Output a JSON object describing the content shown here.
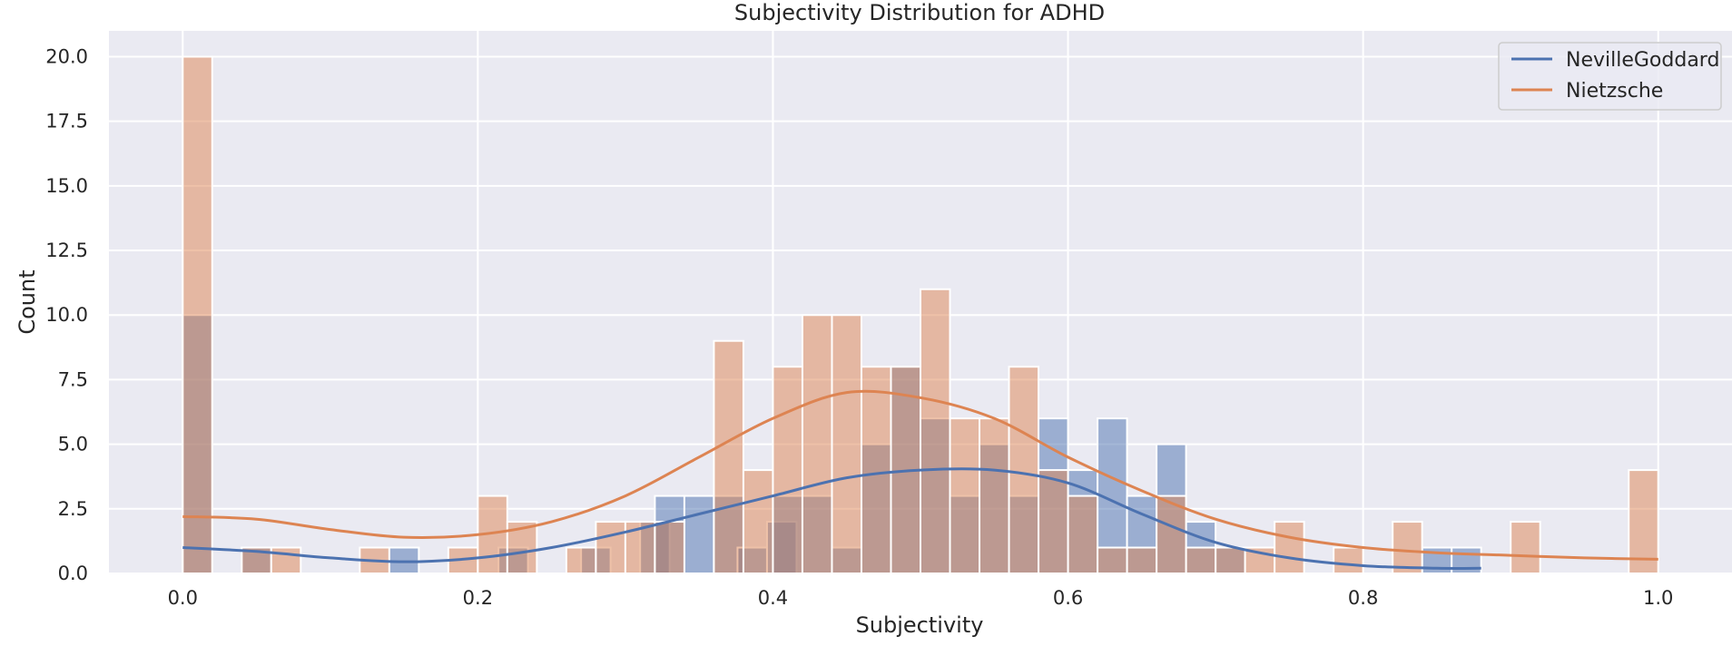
{
  "chart_data": {
    "type": "bar",
    "title": "Subjectivity Distribution for ADHD",
    "xlabel": "Subjectivity",
    "ylabel": "Count",
    "xlim": [
      -0.05,
      1.05
    ],
    "ylim": [
      0,
      21
    ],
    "xticks": [
      "0.0",
      "0.2",
      "0.4",
      "0.6",
      "0.8",
      "1.0"
    ],
    "yticks": [
      "0.0",
      "2.5",
      "5.0",
      "7.5",
      "10.0",
      "12.5",
      "15.0",
      "17.5",
      "20.0"
    ],
    "grid": true,
    "legend_position": "top-right",
    "series": [
      {
        "name": "NevilleGoddard",
        "color": "#4c72b0",
        "bin_width": 0.02,
        "bins": [
          [
            0.0,
            10
          ],
          [
            0.04,
            1
          ],
          [
            0.14,
            1
          ],
          [
            0.214,
            1
          ],
          [
            0.27,
            1
          ],
          [
            0.31,
            2
          ],
          [
            0.32,
            3
          ],
          [
            0.34,
            3
          ],
          [
            0.36,
            3
          ],
          [
            0.376,
            1
          ],
          [
            0.396,
            2
          ],
          [
            0.4,
            3
          ],
          [
            0.42,
            3
          ],
          [
            0.44,
            1
          ],
          [
            0.46,
            5
          ],
          [
            0.48,
            8
          ],
          [
            0.5,
            6
          ],
          [
            0.52,
            3
          ],
          [
            0.54,
            5
          ],
          [
            0.56,
            3
          ],
          [
            0.58,
            6
          ],
          [
            0.6,
            4
          ],
          [
            0.62,
            6
          ],
          [
            0.64,
            3
          ],
          [
            0.66,
            5
          ],
          [
            0.68,
            2
          ],
          [
            0.7,
            1
          ],
          [
            0.84,
            1
          ],
          [
            0.86,
            1
          ]
        ]
      },
      {
        "name": "Nietzsche",
        "color": "#dd8452",
        "bin_width": 0.02,
        "bins": [
          [
            0.0,
            20
          ],
          [
            0.04,
            1
          ],
          [
            0.06,
            1
          ],
          [
            0.12,
            1
          ],
          [
            0.18,
            1
          ],
          [
            0.2,
            3
          ],
          [
            0.22,
            2
          ],
          [
            0.26,
            1
          ],
          [
            0.28,
            2
          ],
          [
            0.3,
            2
          ],
          [
            0.32,
            2
          ],
          [
            0.36,
            9
          ],
          [
            0.38,
            4
          ],
          [
            0.4,
            8
          ],
          [
            0.42,
            10
          ],
          [
            0.44,
            10
          ],
          [
            0.46,
            8
          ],
          [
            0.48,
            8
          ],
          [
            0.5,
            11
          ],
          [
            0.52,
            6
          ],
          [
            0.54,
            6
          ],
          [
            0.56,
            8
          ],
          [
            0.58,
            4
          ],
          [
            0.6,
            3
          ],
          [
            0.62,
            1
          ],
          [
            0.64,
            1
          ],
          [
            0.66,
            3
          ],
          [
            0.68,
            1
          ],
          [
            0.7,
            1
          ],
          [
            0.72,
            1
          ],
          [
            0.74,
            2
          ],
          [
            0.78,
            1
          ],
          [
            0.82,
            2
          ],
          [
            0.9,
            2
          ],
          [
            0.98,
            4
          ]
        ]
      }
    ],
    "kde": [
      {
        "name": "NevilleGoddard",
        "color": "#4c72b0",
        "x": [
          0.0,
          0.05,
          0.1,
          0.15,
          0.2,
          0.25,
          0.3,
          0.35,
          0.4,
          0.45,
          0.5,
          0.55,
          0.6,
          0.65,
          0.7,
          0.75,
          0.8,
          0.85,
          0.88
        ],
        "y": [
          1.0,
          0.85,
          0.6,
          0.45,
          0.6,
          1.0,
          1.6,
          2.3,
          3.0,
          3.7,
          4.0,
          4.0,
          3.5,
          2.3,
          1.2,
          0.6,
          0.3,
          0.2,
          0.2
        ]
      },
      {
        "name": "Nietzsche",
        "color": "#dd8452",
        "x": [
          0.0,
          0.05,
          0.1,
          0.15,
          0.2,
          0.25,
          0.3,
          0.35,
          0.4,
          0.45,
          0.5,
          0.55,
          0.6,
          0.65,
          0.7,
          0.75,
          0.8,
          0.85,
          0.9,
          0.95,
          1.0
        ],
        "y": [
          2.2,
          2.1,
          1.7,
          1.4,
          1.5,
          2.0,
          3.0,
          4.5,
          6.0,
          7.0,
          6.8,
          6.0,
          4.5,
          3.2,
          2.1,
          1.4,
          1.0,
          0.8,
          0.7,
          0.6,
          0.55
        ]
      }
    ]
  }
}
